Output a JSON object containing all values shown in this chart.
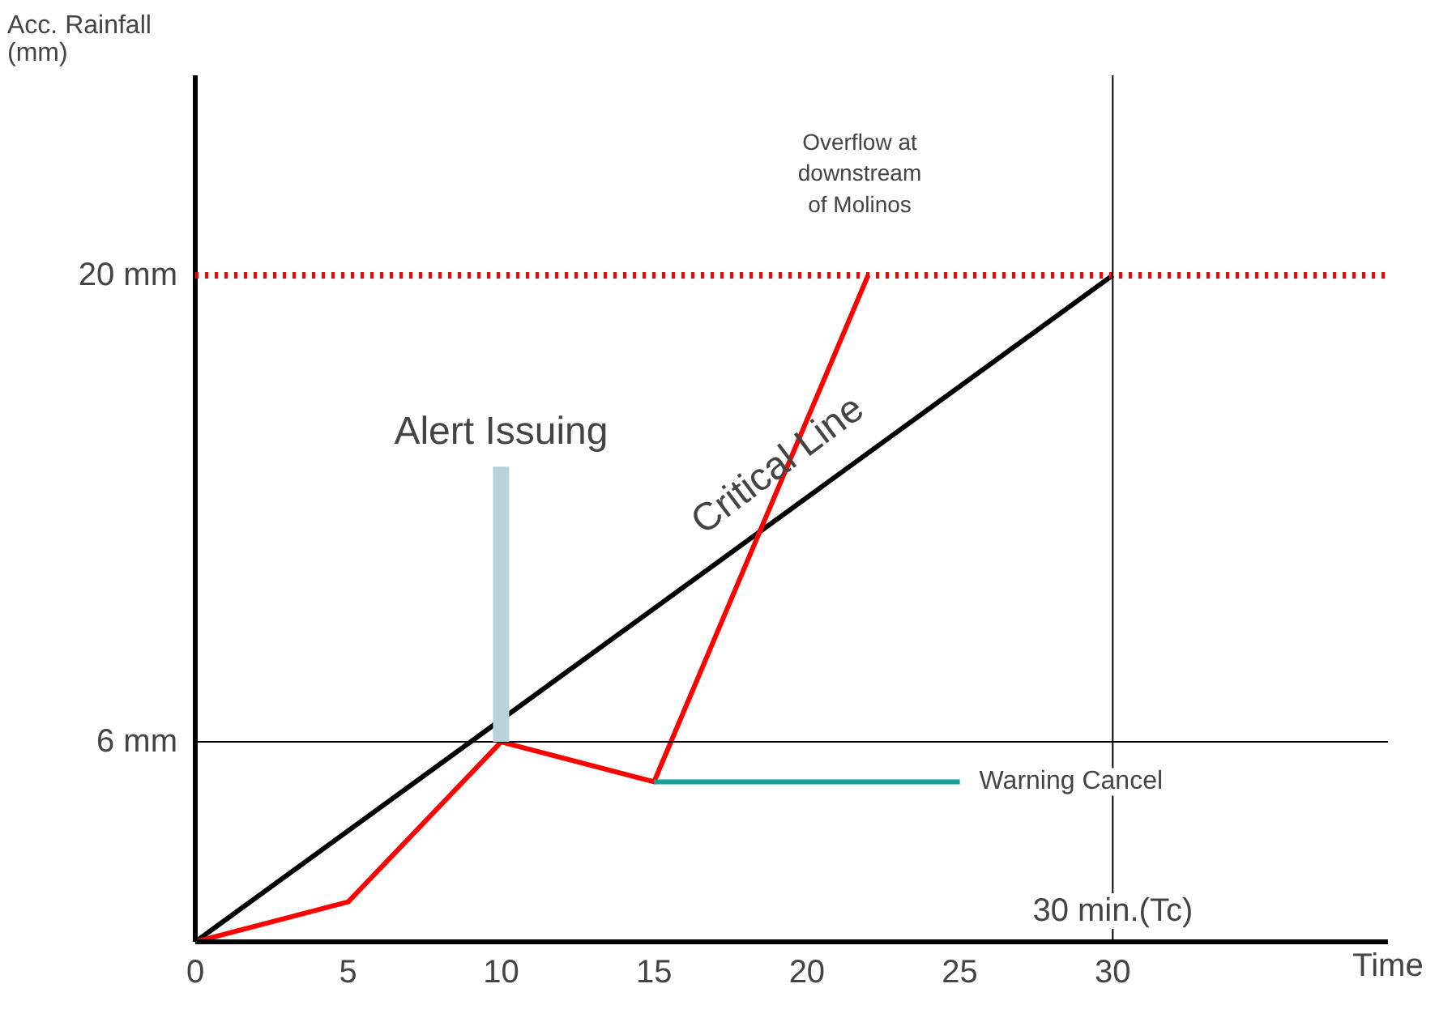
{
  "chart_data": {
    "type": "line",
    "xlabel": "Time",
    "ylabel": "Acc. Rainfall\n(mm)",
    "xlim": [
      0,
      39
    ],
    "ylim": [
      0,
      26
    ],
    "xticks": [
      0,
      5,
      10,
      15,
      20,
      25,
      30
    ],
    "yticks": [
      {
        "value": 6,
        "label": "6 mm"
      },
      {
        "value": 20,
        "label": "20 mm"
      }
    ],
    "series": [
      {
        "color": "#000000",
        "x": [
          0,
          30
        ],
        "values": [
          0,
          20
        ]
      },
      {
        "color": "#ff0000",
        "x": [
          0,
          5,
          10,
          15,
          22
        ],
        "values": [
          0,
          1.2,
          6,
          4.8,
          20
        ]
      },
      {
        "name": "Warning Cancel",
        "color": "#17a09a",
        "x": [
          15,
          25
        ],
        "values": [
          4.8,
          4.8
        ]
      }
    ],
    "ref_lines": [
      {
        "axis": "y",
        "value": 20,
        "color": "#ff0000",
        "line_style": "dotted"
      },
      {
        "axis": "y",
        "value": 6,
        "color": "#000000",
        "line_style": "solid"
      },
      {
        "axis": "x",
        "value": 30,
        "label": "30 min.(Tc)",
        "color": "#000000",
        "line_style": "solid"
      }
    ],
    "annotations": [
      {
        "text": "Alert Issuing",
        "x": 10,
        "y": 6
      },
      {
        "text": "Critical Line",
        "x": 20,
        "y": 13.3
      },
      "Overflow at\ndownstream\nof Molinos"
    ],
    "grid": false,
    "legend": false,
    "marker": "none",
    "line_style": "solid"
  }
}
